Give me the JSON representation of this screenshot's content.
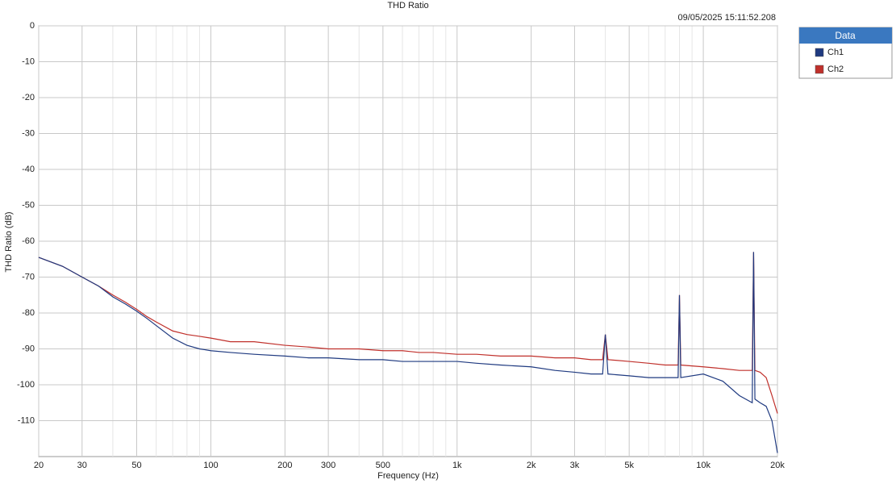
{
  "chart_data": {
    "type": "line",
    "title": "THD Ratio",
    "timestamp": "09/05/2025 15:11:52.208",
    "x_label": "Frequency (Hz)",
    "y_label": "THD Ratio (dB)",
    "xscale": "log",
    "grid": true,
    "legend_title": "Data",
    "legend_position": "right",
    "xlim": [
      20,
      20000
    ],
    "ylim": [
      -120,
      0
    ],
    "xticks": [
      20,
      30,
      50,
      100,
      200,
      300,
      500,
      {
        "value": 1000,
        "label": "1k"
      },
      {
        "value": 2000,
        "label": "2k"
      },
      {
        "value": 3000,
        "label": "3k"
      },
      {
        "value": 5000,
        "label": "5k"
      },
      {
        "value": 10000,
        "label": "10k"
      },
      {
        "value": 20000,
        "label": "20k"
      }
    ],
    "x_minor_gridlines": [
      40,
      60,
      70,
      80,
      90,
      400,
      600,
      700,
      800,
      900,
      4000,
      6000,
      7000,
      8000,
      9000
    ],
    "yticks": [
      0,
      -10,
      -20,
      -30,
      -40,
      -50,
      -60,
      -70,
      -80,
      -90,
      -100,
      -110
    ],
    "x": [
      20,
      25,
      30,
      35,
      40,
      45,
      50,
      55,
      60,
      70,
      80,
      90,
      100,
      120,
      150,
      200,
      250,
      300,
      400,
      500,
      600,
      700,
      800,
      1000,
      1200,
      1500,
      2000,
      2500,
      3000,
      3500,
      3900,
      4000,
      4100,
      5000,
      6000,
      7000,
      7900,
      8000,
      8100,
      10000,
      12000,
      14000,
      15800,
      16000,
      16200,
      17000,
      18000,
      19000,
      20000
    ],
    "series": [
      {
        "name": "Ch1",
        "color": "#1f3a80",
        "values": [
          -64.5,
          -67,
          -70,
          -72.5,
          -75.5,
          -77.5,
          -79.5,
          -81.5,
          -83.5,
          -87,
          -89,
          -90,
          -90.5,
          -91,
          -91.5,
          -92,
          -92.5,
          -92.5,
          -93,
          -93,
          -93.5,
          -93.5,
          -93.5,
          -93.5,
          -94,
          -94.5,
          -95,
          -96,
          -96.5,
          -97,
          -97,
          -86,
          -97,
          -97.5,
          -98,
          -98,
          -98,
          -75,
          -98,
          -97,
          -99,
          -103,
          -105,
          -63,
          -104,
          -105,
          -106,
          -110,
          -119
        ]
      },
      {
        "name": "Ch2",
        "color": "#c0302b",
        "values": [
          -64.5,
          -67,
          -70,
          -72.5,
          -75,
          -77,
          -79,
          -81,
          -82.5,
          -85,
          -86,
          -86.5,
          -87,
          -88,
          -88,
          -89,
          -89.5,
          -90,
          -90,
          -90.5,
          -90.5,
          -91,
          -91,
          -91.5,
          -91.5,
          -92,
          -92,
          -92.5,
          -92.5,
          -93,
          -93,
          -86,
          -93,
          -93.5,
          -94,
          -94.5,
          -94.5,
          -75,
          -94.5,
          -95,
          -95.5,
          -96,
          -96,
          -63,
          -96,
          -96.5,
          -98,
          -103,
          -108
        ]
      }
    ]
  }
}
